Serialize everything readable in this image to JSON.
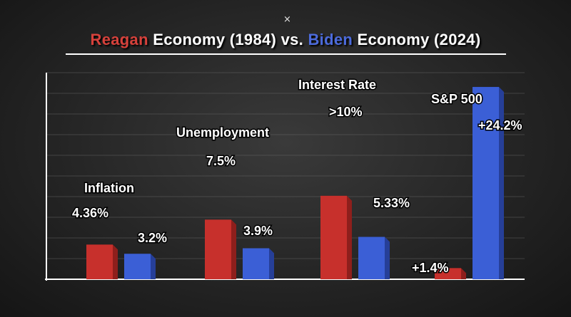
{
  "ui": {
    "close_label": "×",
    "title_reagan": "Reagan",
    "title_mid": " Economy (1984) vs. ",
    "title_biden": "Biden",
    "title_end": " Economy (2024)"
  },
  "colors": {
    "reagan": "#c7302c",
    "biden": "#3b5fd6",
    "axis": "#ffffff"
  },
  "chart_data": {
    "type": "bar",
    "title": "Reagan Economy (1984) vs. Biden Economy (2024)",
    "ylim": [
      0,
      26
    ],
    "grid": true,
    "categories": [
      "Inflation",
      "Unemployment",
      "Interest Rate",
      "S&P 500"
    ],
    "series": [
      {
        "name": "Reagan",
        "values": [
          4.36,
          7.5,
          10.5,
          1.4
        ],
        "labels": [
          "4.36%",
          "7.5%",
          ">10%",
          "+1.4%"
        ]
      },
      {
        "name": "Biden",
        "values": [
          3.2,
          3.9,
          5.33,
          24.2
        ],
        "labels": [
          "3.2%",
          "3.9%",
          "5.33%",
          "+24.2%"
        ]
      }
    ]
  }
}
